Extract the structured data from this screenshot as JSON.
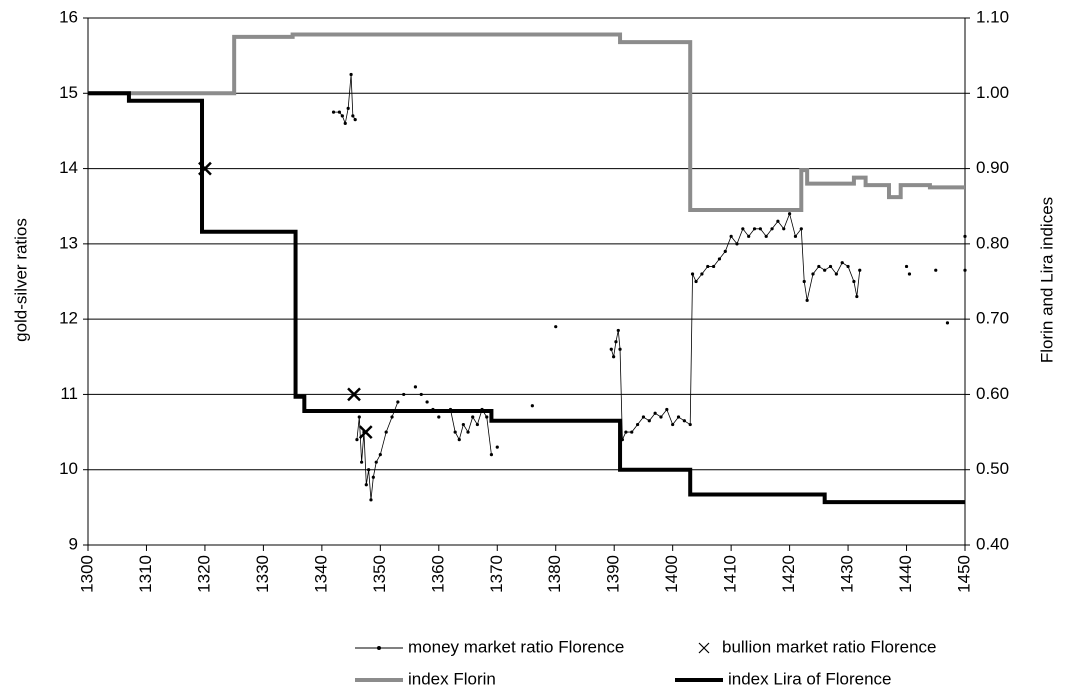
{
  "chart_data": {
    "type": "line",
    "xlim": [
      1300,
      1450
    ],
    "xticks": [
      1300,
      1310,
      1320,
      1330,
      1340,
      1350,
      1360,
      1370,
      1380,
      1390,
      1400,
      1410,
      1420,
      1430,
      1440,
      1450
    ],
    "ylim": [
      9,
      16
    ],
    "yticks": [
      9,
      10,
      11,
      12,
      13,
      14,
      15,
      16
    ],
    "y2lim": [
      0.4,
      1.1
    ],
    "y2ticks": [
      {
        "value": 0.4,
        "label": "0.40"
      },
      {
        "value": 0.5,
        "label": "0.50"
      },
      {
        "value": 0.6,
        "label": "0.60"
      },
      {
        "value": 0.7,
        "label": "0.70"
      },
      {
        "value": 0.8,
        "label": "0.80"
      },
      {
        "value": 0.9,
        "label": "0.90"
      },
      {
        "value": 1.0,
        "label": "1.00"
      },
      {
        "value": 1.1,
        "label": "1.10"
      }
    ],
    "ylabel": "gold-silver ratios",
    "y2label": "Florin and Lira indices",
    "grid": true,
    "legend": "bottom",
    "series": [
      {
        "name": "money market ratio Florence",
        "color": "#000000",
        "style": "line-dots",
        "x": [
          1342,
          1343,
          1343.5,
          1344,
          1344.5,
          1345,
          1345.3,
          1345.7,
          null,
          1346,
          1346.4,
          1346.8,
          1347.2,
          1347.6,
          1348,
          1348.4,
          1348.8,
          1349.3,
          1350,
          1351,
          1352,
          1353,
          null,
          1354,
          null,
          1356,
          null,
          1357,
          null,
          1358,
          null,
          1359,
          null,
          1360,
          null,
          1362,
          1362.8,
          1363.5,
          1364.2,
          1365,
          1365.8,
          1366.6,
          1367.4,
          1368.2,
          1369,
          null,
          1370,
          null,
          1376,
          null,
          1380,
          null,
          1389.5,
          1389.9,
          1390.3,
          1390.7,
          1391,
          1391.4,
          1392,
          1393,
          1394,
          1395,
          1396,
          1397,
          1398,
          1399,
          1400,
          1401,
          1402,
          1403,
          1403.4,
          1404,
          1405,
          1406,
          1407,
          1408,
          1409,
          1410,
          1411,
          1412,
          1413,
          1414,
          1415,
          1416,
          1417,
          1418,
          1419,
          1420,
          1421,
          1422,
          1422.5,
          1423,
          1424,
          1425,
          1426,
          1427,
          1428,
          1429,
          1430,
          1431,
          1431.5,
          1432,
          null,
          1440,
          null,
          1440.5,
          null,
          1445,
          null,
          1447,
          null,
          1450,
          null,
          1450
        ],
        "values": [
          14.75,
          14.75,
          14.7,
          14.6,
          14.8,
          15.25,
          14.7,
          14.65,
          null,
          10.4,
          10.7,
          10.1,
          10.5,
          9.8,
          10.0,
          9.6,
          9.9,
          10.1,
          10.2,
          10.5,
          10.7,
          10.9,
          null,
          11.0,
          null,
          11.1,
          null,
          11.0,
          null,
          10.9,
          null,
          10.8,
          null,
          10.7,
          null,
          10.8,
          10.5,
          10.4,
          10.6,
          10.5,
          10.7,
          10.6,
          10.8,
          10.7,
          10.2,
          null,
          10.3,
          null,
          10.85,
          null,
          11.9,
          null,
          11.6,
          11.5,
          11.7,
          11.85,
          11.6,
          10.4,
          10.5,
          10.5,
          10.6,
          10.7,
          10.65,
          10.75,
          10.7,
          10.8,
          10.6,
          10.7,
          10.65,
          10.6,
          12.6,
          12.5,
          12.6,
          12.7,
          12.7,
          12.8,
          12.9,
          13.1,
          13.0,
          13.2,
          13.1,
          13.2,
          13.2,
          13.1,
          13.2,
          13.3,
          13.2,
          13.4,
          13.1,
          13.2,
          12.5,
          12.25,
          12.6,
          12.7,
          12.65,
          12.7,
          12.6,
          12.75,
          12.7,
          12.5,
          12.3,
          12.65,
          null,
          12.7,
          null,
          12.6,
          null,
          12.65,
          null,
          11.95,
          null,
          12.65,
          null,
          13.1
        ]
      },
      {
        "name": "bullion market ratio Florence",
        "color": "#000000",
        "style": "cross",
        "x": [
          1320,
          1345.5,
          1347.5
        ],
        "values": [
          14.0,
          11.0,
          10.5
        ]
      },
      {
        "name": "index Florin",
        "color": "#8c8c8c",
        "style": "thick",
        "axis": "y2",
        "x": [
          1300,
          1325,
          1325,
          1335,
          1335,
          1391,
          1391,
          1403,
          1403,
          1422,
          1422,
          1423,
          1423,
          1431,
          1431,
          1433,
          1433,
          1437,
          1437,
          1439,
          1439,
          1444,
          1444,
          1450
        ],
        "values": [
          1.0,
          1.0,
          1.075,
          1.075,
          1.078,
          1.078,
          1.068,
          1.068,
          0.845,
          0.845,
          0.898,
          0.898,
          0.88,
          0.88,
          0.888,
          0.888,
          0.878,
          0.878,
          0.862,
          0.862,
          0.878,
          0.878,
          0.875,
          0.875
        ]
      },
      {
        "name": "index Lira of Florence",
        "color": "#000000",
        "style": "thick",
        "axis": "y2",
        "x": [
          1300,
          1307,
          1307,
          1319.5,
          1319.5,
          1335.5,
          1335.5,
          1337,
          1337,
          1369,
          1369,
          1391,
          1391,
          1403,
          1403,
          1426,
          1426,
          1450
        ],
        "values": [
          1.0,
          1.0,
          0.99,
          0.99,
          0.816,
          0.816,
          0.597,
          0.597,
          0.578,
          0.578,
          0.565,
          0.565,
          0.5,
          0.5,
          0.467,
          0.467,
          0.457,
          0.457
        ]
      }
    ]
  }
}
